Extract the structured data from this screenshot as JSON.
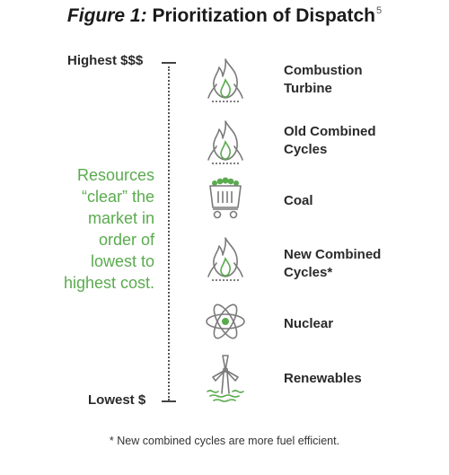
{
  "title": {
    "prefix": "Figure 1:",
    "main": "Prioritization of Dispatch",
    "superscript": "5"
  },
  "axis": {
    "top_label": "Highest $$$",
    "bottom_label": "Lowest $"
  },
  "note_lines": [
    "Resources",
    "“clear” the",
    "market in",
    "order of",
    "lowest to",
    "highest cost."
  ],
  "items": [
    {
      "lines": [
        "Combustion",
        "Turbine"
      ],
      "icon": "flame-icon"
    },
    {
      "lines": [
        "Old Combined",
        "Cycles"
      ],
      "icon": "flame-icon"
    },
    {
      "lines": [
        "Coal"
      ],
      "icon": "coal-cart-icon"
    },
    {
      "lines": [
        "New Combined",
        "Cycles*"
      ],
      "icon": "flame-icon"
    },
    {
      "lines": [
        "Nuclear"
      ],
      "icon": "atom-icon"
    },
    {
      "lines": [
        "Renewables"
      ],
      "icon": "wind-turbine-icon"
    }
  ],
  "footnote": "* New combined cycles are more fuel efficient.",
  "colors": {
    "accent_green": "#5aab4e",
    "icon_gray": "#7a7a7a",
    "text": "#2a2a2a"
  }
}
